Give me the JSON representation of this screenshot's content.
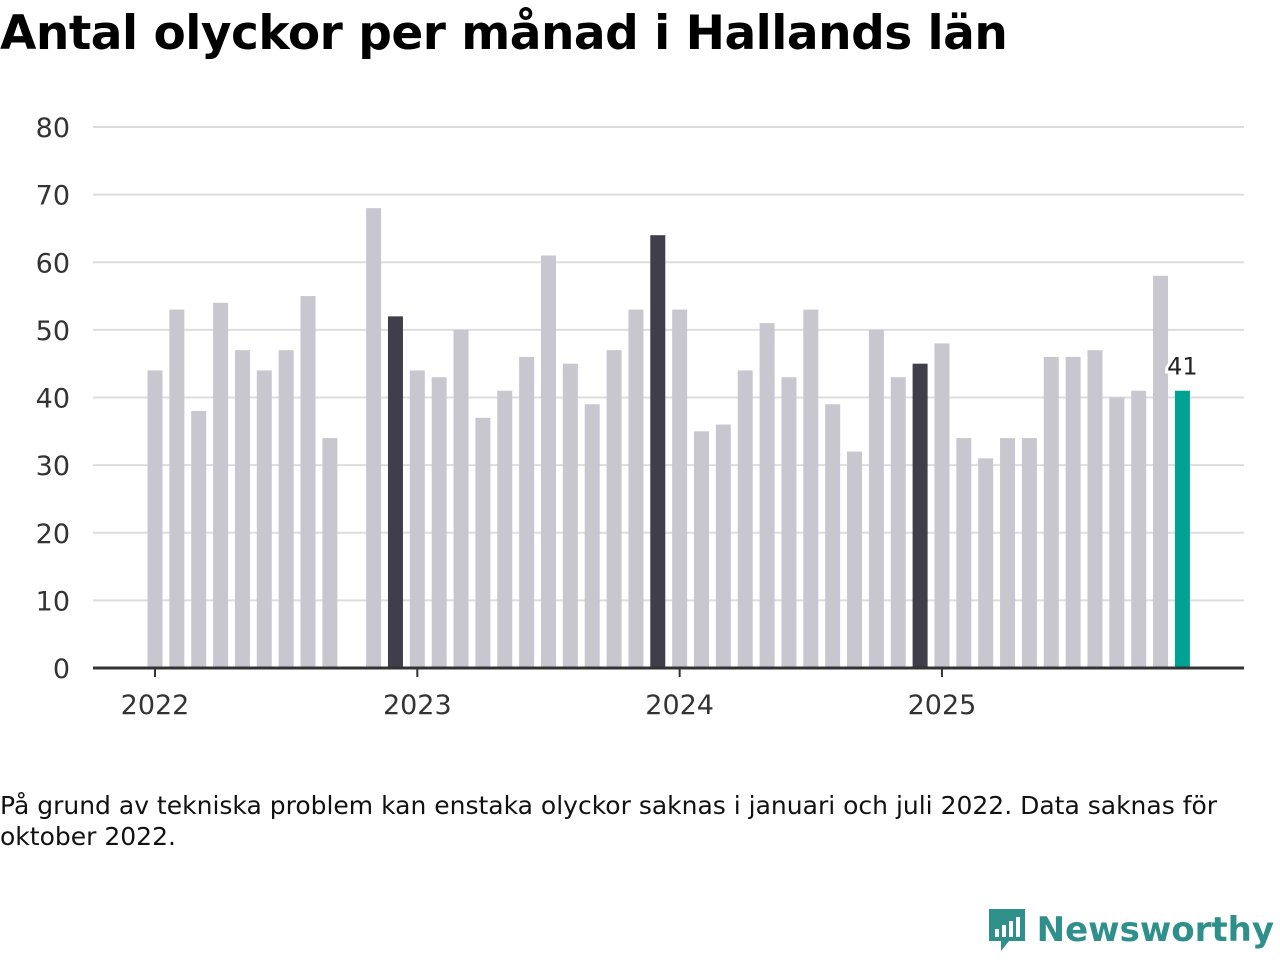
{
  "title": "Antal olyckor per månad i Hallands län",
  "note": "På grund av tekniska problem kan enstaka olyckor saknas i januari och juli 2022. Data saknas för oktober 2022.",
  "brand": "Newsworthy",
  "colors": {
    "bar": "#c8c7cf",
    "highlight": "#3f3e4a",
    "latest": "#00a393",
    "grid": "#dddddd",
    "axis": "#333333"
  },
  "chart_data": {
    "type": "bar",
    "title": "Antal olyckor per månad i Hallands län",
    "xlabel": "",
    "ylabel": "",
    "ylim": [
      0,
      80
    ],
    "yticks": [
      0,
      10,
      20,
      30,
      40,
      50,
      60,
      70,
      80
    ],
    "x_tick_labels": [
      {
        "label": "2022",
        "index": 0
      },
      {
        "label": "2023",
        "index": 12
      },
      {
        "label": "2024",
        "index": 24
      },
      {
        "label": "2025",
        "index": 36
      }
    ],
    "categories": [
      "2022-01",
      "2022-02",
      "2022-03",
      "2022-04",
      "2022-05",
      "2022-06",
      "2022-07",
      "2022-08",
      "2022-09",
      "2022-10",
      "2022-11",
      "2022-12",
      "2023-01",
      "2023-02",
      "2023-03",
      "2023-04",
      "2023-05",
      "2023-06",
      "2023-07",
      "2023-08",
      "2023-09",
      "2023-10",
      "2023-11",
      "2023-12",
      "2024-01",
      "2024-02",
      "2024-03",
      "2024-04",
      "2024-05",
      "2024-06",
      "2024-07",
      "2024-08",
      "2024-09",
      "2024-10",
      "2024-11",
      "2024-12",
      "2025-01",
      "2025-02",
      "2025-03",
      "2025-04",
      "2025-05",
      "2025-06",
      "2025-07",
      "2025-08",
      "2025-09",
      "2025-10",
      "2025-11",
      "2025-12"
    ],
    "values": [
      44,
      53,
      38,
      54,
      47,
      44,
      47,
      55,
      34,
      null,
      68,
      52,
      44,
      43,
      50,
      37,
      41,
      46,
      61,
      45,
      39,
      47,
      53,
      64,
      53,
      35,
      36,
      44,
      51,
      43,
      53,
      39,
      32,
      50,
      43,
      45,
      48,
      34,
      31,
      34,
      34,
      46,
      46,
      47,
      40,
      41,
      58,
      41
    ],
    "highlighted": [
      "2022-12",
      "2023-12",
      "2024-12"
    ],
    "latest": "2025-12",
    "annotations": [
      {
        "category": "2025-12",
        "text": "41"
      }
    ]
  }
}
